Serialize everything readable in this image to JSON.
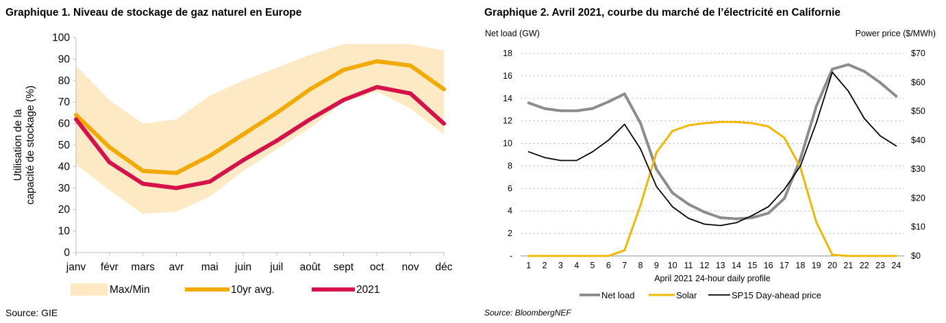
{
  "chart_data": [
    {
      "type": "line",
      "title": "Graphique 1. Niveau de stockage de gaz naturel en Europe",
      "ylabel_lines": [
        "Utilisation de la",
        "capacité de stockage (%)"
      ],
      "xlabel": "",
      "ylim": [
        0,
        100
      ],
      "y_ticks": [
        "0",
        "10",
        "20",
        "30",
        "40",
        "50",
        "60",
        "70",
        "80",
        "90",
        "100"
      ],
      "categories": [
        "janv",
        "févr",
        "mars",
        "avr",
        "mai",
        "juin",
        "juil",
        "août",
        "sept",
        "oct",
        "nov",
        "déc"
      ],
      "band": {
        "name": "Max/Min",
        "color": "#fde9c4",
        "max": [
          87,
          71,
          60,
          62,
          73,
          80,
          86,
          92,
          97,
          97,
          97,
          94
        ],
        "min": [
          41,
          29,
          18,
          19,
          26,
          38,
          48,
          58,
          70,
          75,
          67,
          55
        ]
      },
      "series": [
        {
          "name": "10yr avg.",
          "color": "#f2a900",
          "values": [
            64,
            49,
            38,
            37,
            45,
            55,
            65,
            76,
            85,
            89,
            87,
            76
          ]
        },
        {
          "name": "2021",
          "color": "#d5124a",
          "values": [
            62,
            42,
            32,
            30,
            33,
            43,
            52,
            62,
            71,
            77,
            74,
            60
          ]
        }
      ],
      "legend": "bottom",
      "grid": false,
      "source": "Source: GIE"
    },
    {
      "type": "line",
      "title": "Graphique 2. Avril 2021, courbe du marché de l’électricité en Californie",
      "ylabel": "Net load (GW)",
      "y2label": "Power price ($/MWh)",
      "xlabel": "April 2021 24-hour daily profile",
      "ylim": [
        0,
        18
      ],
      "y2lim": [
        0,
        70
      ],
      "y_ticks": [
        "-",
        "2",
        "4",
        "6",
        "8",
        "10",
        "12",
        "14",
        "16",
        "18"
      ],
      "y2_ticks": [
        "$0",
        "$10",
        "$20",
        "$30",
        "$40",
        "$50",
        "$60",
        "$70"
      ],
      "x": [
        1,
        2,
        3,
        4,
        5,
        6,
        7,
        8,
        9,
        10,
        11,
        12,
        13,
        14,
        15,
        16,
        17,
        18,
        19,
        20,
        21,
        22,
        23,
        24
      ],
      "series": [
        {
          "name": "Net load",
          "axis": "left",
          "color": "#8c8c8c",
          "values": [
            13.6,
            13.1,
            12.9,
            12.9,
            13.1,
            13.7,
            14.4,
            11.8,
            7.7,
            5.6,
            4.6,
            3.9,
            3.4,
            3.3,
            3.4,
            3.8,
            5.1,
            8.6,
            13.3,
            16.6,
            17.0,
            16.4,
            15.4,
            14.2
          ]
        },
        {
          "name": "Solar",
          "axis": "left",
          "color": "#f2b800",
          "values": [
            0,
            0,
            0,
            0,
            0,
            0,
            0.5,
            4.5,
            9.2,
            11.1,
            11.6,
            11.8,
            11.9,
            11.9,
            11.8,
            11.5,
            10.5,
            7.9,
            3.0,
            0.1,
            0,
            0,
            0,
            0
          ]
        },
        {
          "name": "SP15 Day-ahead price",
          "axis": "right",
          "color": "#000000",
          "values": [
            36,
            34,
            33,
            33,
            36,
            40,
            45.5,
            37,
            24,
            17,
            13,
            11,
            10.5,
            11.5,
            14,
            17,
            23,
            31,
            46,
            63.5,
            57,
            47.5,
            41.5,
            38
          ]
        }
      ],
      "grid": true,
      "legend": "bottom",
      "source": "Source: BloombergNEF"
    }
  ]
}
